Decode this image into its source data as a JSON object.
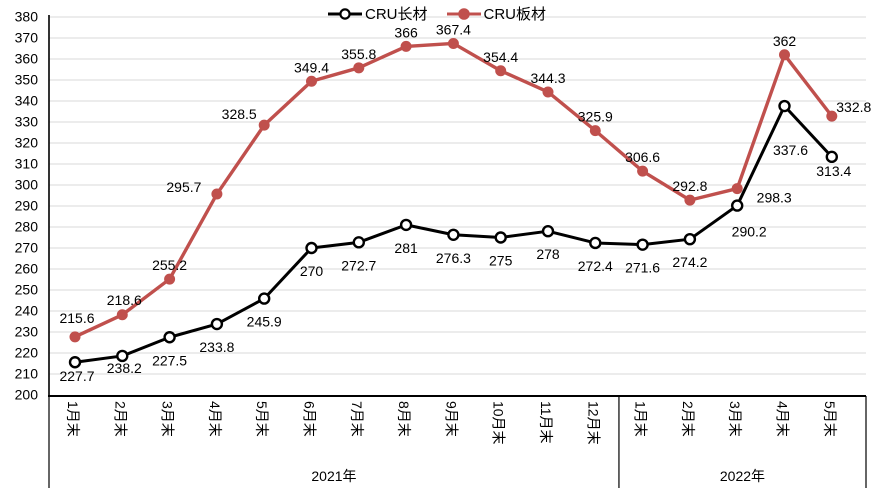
{
  "legend": {
    "items": [
      {
        "label": "CRU长材",
        "marker": "hollow-circle"
      },
      {
        "label": "CRU板材",
        "marker": "filled-circle"
      }
    ]
  },
  "chart_data": {
    "type": "line",
    "categories": [
      "1月末",
      "2月末",
      "3月末",
      "4月末",
      "5月末",
      "6月末",
      "7月末",
      "8月末",
      "9月末",
      "10月末",
      "11月末",
      "12月末",
      "1月末",
      "2月末",
      "3月末",
      "4月末",
      "5月末"
    ],
    "category_groups": [
      {
        "label": "2021年",
        "span": 12
      },
      {
        "label": "2022年",
        "span": 5
      }
    ],
    "series": [
      {
        "name": "CRU长材",
        "color": "#000000",
        "marker": "hollow-circle",
        "values": [
          215.6,
          218.6,
          227.5,
          233.8,
          245.9,
          270,
          272.7,
          281,
          276.3,
          275,
          278,
          272.4,
          271.6,
          274.2,
          290.2,
          337.6,
          313.4
        ]
      },
      {
        "name": "CRU板材",
        "color": "#c0504d",
        "marker": "filled-circle",
        "values": [
          227.7,
          238.2,
          255.2,
          295.7,
          328.5,
          349.4,
          355.8,
          366,
          367.4,
          354.4,
          344.3,
          325.9,
          306.6,
          292.8,
          298.3,
          362,
          332.8
        ]
      }
    ],
    "ylim": [
      200,
      380
    ],
    "ytick_step": 10,
    "yticks": [
      380,
      370,
      360,
      350,
      340,
      330,
      320,
      310,
      300,
      290,
      280,
      270,
      260,
      250,
      240,
      230,
      220,
      210,
      200
    ],
    "grid": true,
    "legend_position": "top",
    "colors": {
      "grid": "#d9d9d9",
      "axis": "#000000",
      "label_text": "#000000"
    },
    "layout_hints": {
      "label_offsets": {
        "0": {
          "default": [
            0,
            28
          ],
          "overrides": {
            "0": [
              2,
              -39
            ],
            "1": [
              2,
              -51
            ],
            "14": [
              12,
              31
            ],
            "15": [
              6,
              49
            ],
            "16": [
              2,
              19
            ]
          }
        },
        "1": {
          "default": [
            0,
            -9
          ],
          "overrides": {
            "0": [
              2,
              44
            ],
            "1": [
              2,
              58
            ],
            "3": [
              -33,
              -2
            ],
            "4": [
              -25,
              -6
            ],
            "14": [
              37,
              14
            ],
            "16": [
              22,
              -4
            ]
          }
        }
      }
    }
  }
}
